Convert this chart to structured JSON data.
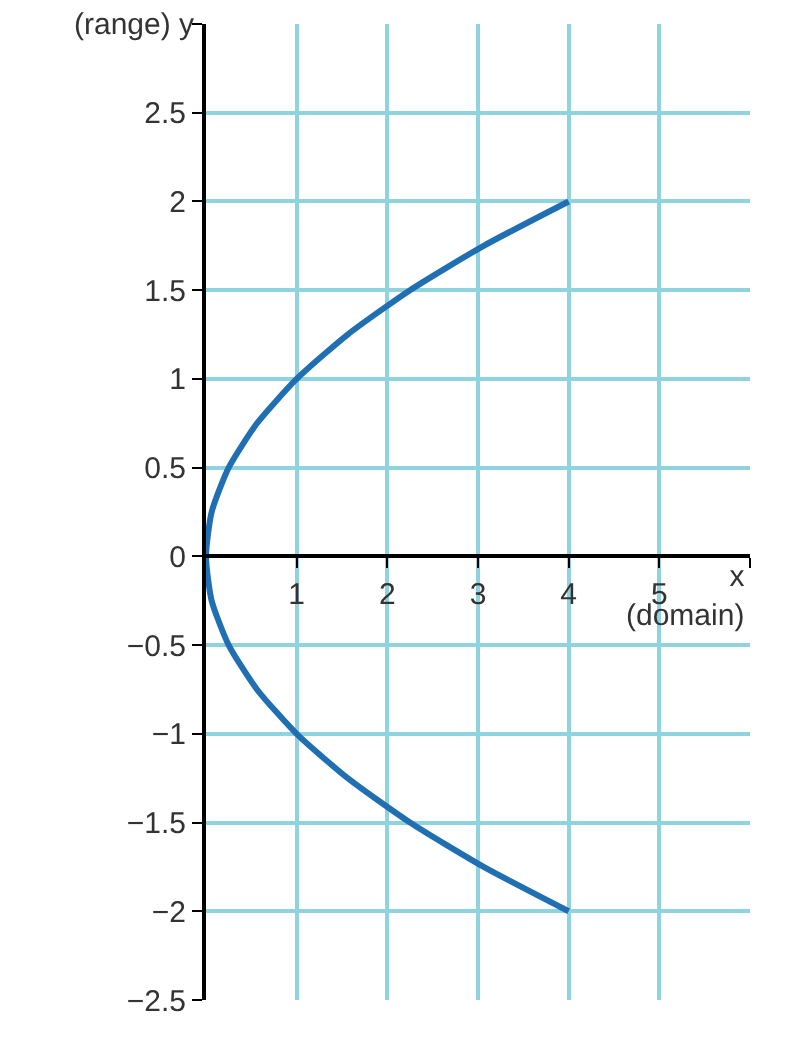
{
  "chart_data": {
    "type": "line",
    "xlabel": "x\n(domain)",
    "ylabel": "(range) y",
    "x": [
      4,
      3.0625,
      2.25,
      1.5625,
      1,
      0.5625,
      0.25,
      0.0625,
      0,
      0.0625,
      0.25,
      0.5625,
      1,
      1.5625,
      2.25,
      3.0625,
      4
    ],
    "series": [
      {
        "color": "#1f6fb2",
        "values": [
          -2,
          -1.75,
          -1.5,
          -1.25,
          -1,
          -0.75,
          -0.5,
          -0.25,
          0,
          0.25,
          0.5,
          0.75,
          1,
          1.25,
          1.5,
          1.75,
          2
        ]
      }
    ],
    "xlim": [
      0,
      6
    ],
    "ylim": [
      -2.5,
      3
    ],
    "xticks": [
      1,
      2,
      3,
      4,
      5,
      {
        "value": 6,
        "label": null
      }
    ],
    "yticks": [
      {
        "value": -2.5,
        "label": "−2.5"
      },
      {
        "value": -2,
        "label": "−2"
      },
      {
        "value": -1.5,
        "label": "−1.5"
      },
      {
        "value": -1,
        "label": "−1"
      },
      {
        "value": -0.5,
        "label": "−0.5"
      },
      0,
      0.5,
      1,
      1.5,
      2,
      2.5,
      {
        "value": 3,
        "label": null
      }
    ],
    "grid": true,
    "marker": "none",
    "line_style": "solid"
  }
}
